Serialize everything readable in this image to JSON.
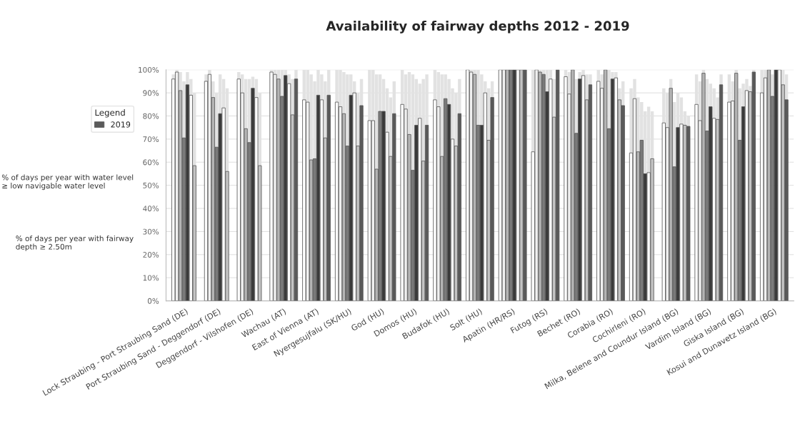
{
  "chart_data": {
    "type": "bar",
    "title": "Availability of fairway depths 2012 - 2019",
    "categories": [
      "Lock Straubing - Port Straubing Sand (DE)",
      "Port Straubing Sand - Deggendorf (DE)",
      "Deggendorf - Vilshofen (DE)",
      "Wachau (AT)",
      "East of Vienna (AT)",
      "Nyergesujfalu (SK/HU)",
      "God (HU)",
      "Domos (HU)",
      "Budafok (HU)",
      "Solt (HU)",
      "Apatin (HR/RS)",
      "Futog (RS)",
      "Bechet (RO)",
      "Corabia (RO)",
      "Cochirleni (RO)",
      "Milka, Belene and Coundur Island (BG)",
      "Vardim Island (BG)",
      "Giska Island (BG)",
      "Kosui and Dunavetz Island (BG)"
    ],
    "ylim": [
      0,
      100
    ],
    "yticks": [
      {
        "value": 0,
        "label": "0%"
      },
      {
        "value": 10,
        "label": "10%"
      },
      {
        "value": 20,
        "label": "20%"
      },
      {
        "value": 30,
        "label": "30%"
      },
      {
        "value": 40,
        "label": "40%"
      },
      {
        "value": 50,
        "label": "50%"
      },
      {
        "value": 60,
        "label": "60%"
      },
      {
        "value": 70,
        "label": "70%"
      },
      {
        "value": 80,
        "label": "80%"
      },
      {
        "value": 90,
        "label": "90%"
      },
      {
        "value": 100,
        "label": "100%"
      }
    ],
    "grid": "y",
    "legend": "left",
    "legend_title": "Legend",
    "annotations": [
      "% of days per year with water level ≥ low navigable water level",
      "% of days per year with fairway depth ≥ 2.50m"
    ],
    "series": [
      {
        "color": "#ffffff",
        "values": [
          96,
          95,
          96,
          99,
          87,
          86,
          78,
          85,
          87,
          100,
          100,
          64.5,
          97,
          95,
          64,
          77,
          85,
          86,
          90
        ],
        "errors": [
          [
            96,
            98
          ],
          [
            95,
            98
          ],
          [
            96,
            99
          ],
          [
            99,
            100
          ],
          [
            87,
            100
          ],
          [
            86,
            100
          ],
          [
            78,
            100
          ],
          [
            85,
            100
          ],
          [
            87,
            100
          ],
          null,
          null,
          [
            64.5,
            100
          ],
          [
            97,
            100
          ],
          [
            95,
            100
          ],
          [
            64,
            92
          ],
          [
            77,
            92
          ],
          [
            85,
            98
          ],
          [
            86,
            98
          ],
          [
            90,
            100
          ]
        ]
      },
      {
        "color": "#f0f0f0",
        "values": [
          99,
          98,
          90,
          98,
          86,
          84,
          78,
          83,
          84,
          99,
          100,
          100,
          89.5,
          92,
          87.5,
          75,
          78,
          86.5,
          96.5
        ],
        "errors": [
          [
            99,
            100
          ],
          [
            98,
            100
          ],
          [
            90,
            98
          ],
          [
            98,
            100
          ],
          [
            86,
            100
          ],
          [
            84,
            100
          ],
          [
            78,
            100
          ],
          [
            83,
            98
          ],
          [
            84,
            99
          ],
          [
            99,
            100
          ],
          null,
          null,
          [
            89.5,
            99
          ],
          [
            92,
            98
          ],
          [
            87.5,
            96
          ],
          [
            75,
            90
          ],
          [
            78,
            95
          ],
          [
            86.5,
            95
          ],
          [
            96.5,
            100
          ]
        ]
      },
      {
        "color": "#b4b4b4",
        "values": [
          91,
          88,
          74.5,
          96,
          61,
          81,
          57,
          72,
          62.5,
          98,
          100,
          99,
          100,
          100,
          64.5,
          92,
          98.5,
          98.5,
          100
        ],
        "errors": [
          [
            91,
            99
          ],
          [
            88,
            95
          ],
          [
            74.5,
            96
          ],
          [
            96,
            100
          ],
          [
            61,
            98
          ],
          [
            81,
            99
          ],
          [
            57,
            98
          ],
          [
            72,
            99
          ],
          [
            62.5,
            98
          ],
          [
            98,
            100
          ],
          null,
          [
            99,
            100
          ],
          null,
          null,
          [
            64.5,
            88
          ],
          [
            92,
            96
          ],
          [
            98.5,
            100
          ],
          [
            98.5,
            100
          ],
          null
        ]
      },
      {
        "color": "#7a7a7a",
        "values": [
          70.5,
          66.5,
          68.5,
          88.5,
          61.5,
          67,
          82,
          56.5,
          87.5,
          76,
          100,
          98,
          72.5,
          74.5,
          69.5,
          58,
          73.5,
          69.5,
          88.5
        ],
        "errors": [
          [
            70.5,
            95
          ],
          [
            66.5,
            90
          ],
          [
            68.5,
            96
          ],
          [
            88.5,
            100
          ],
          [
            61.5,
            95
          ],
          [
            67,
            98
          ],
          [
            82,
            98
          ],
          [
            56.5,
            98
          ],
          [
            87.5,
            98
          ],
          [
            76,
            100
          ],
          null,
          [
            98,
            100
          ],
          [
            72.5,
            96
          ],
          [
            74.5,
            100
          ],
          [
            69.5,
            86
          ],
          [
            58,
            86
          ],
          [
            73.5,
            96
          ],
          [
            69.5,
            92
          ],
          [
            88.5,
            98
          ]
        ]
      },
      {
        "color": "#3a3a3a",
        "values": [
          93.5,
          81,
          92,
          97.5,
          89,
          89,
          82,
          76,
          85,
          76,
          100,
          90.5,
          96,
          96,
          55,
          75,
          84,
          84,
          100
        ],
        "errors": [
          [
            93.5,
            99
          ],
          [
            81,
            98
          ],
          [
            92,
            97
          ],
          [
            97.5,
            100
          ],
          [
            89,
            100
          ],
          [
            89,
            98
          ],
          [
            82,
            96
          ],
          [
            76,
            96
          ],
          [
            85,
            96
          ],
          [
            76,
            98
          ],
          null,
          [
            90.5,
            100
          ],
          [
            96,
            99
          ],
          [
            96,
            99
          ],
          [
            55,
            82
          ],
          [
            75,
            90
          ],
          [
            84,
            94
          ],
          [
            84,
            94
          ],
          null
        ]
      },
      {
        "color": "#fafafa",
        "values": [
          89,
          83.5,
          88,
          94,
          87,
          90,
          73,
          79,
          70,
          90,
          100,
          96,
          97.5,
          96.5,
          55.5,
          76.5,
          79,
          91,
          100
        ],
        "errors": [
          [
            89,
            96
          ],
          [
            83.5,
            96
          ],
          [
            88,
            96
          ],
          [
            94,
            98
          ],
          [
            87,
            98
          ],
          [
            90,
            95
          ],
          [
            73,
            92
          ],
          [
            79,
            94
          ],
          [
            70,
            92
          ],
          [
            90,
            95
          ],
          null,
          [
            96,
            100
          ],
          [
            97.5,
            100
          ],
          [
            96.5,
            99
          ],
          [
            55.5,
            84
          ],
          [
            76.5,
            88
          ],
          [
            79,
            92
          ],
          [
            91,
            96
          ],
          null
        ]
      },
      {
        "color": "#c4c4c4",
        "values": [
          58.5,
          56,
          58.5,
          80.5,
          70.5,
          67,
          62.5,
          60.5,
          67,
          69.5,
          100,
          79.5,
          87,
          87,
          61.5,
          76,
          78.5,
          90.5,
          93.5
        ],
        "errors": [
          [
            58.5,
            90
          ],
          [
            56,
            92
          ],
          [
            58.5,
            90
          ],
          [
            80.5,
            96
          ],
          [
            70.5,
            95
          ],
          [
            67,
            90
          ],
          [
            62.5,
            88
          ],
          [
            60.5,
            96
          ],
          [
            67,
            90
          ],
          [
            69.5,
            92
          ],
          null,
          [
            79.5,
            96
          ],
          [
            87,
            98
          ],
          [
            87,
            92
          ],
          [
            61.5,
            82
          ],
          [
            76,
            82
          ],
          [
            78.5,
            88
          ],
          [
            90.5,
            93
          ],
          [
            93.5,
            100
          ]
        ]
      },
      {
        "name": "2019",
        "color": "#5a5a5a",
        "values": [
          null,
          null,
          null,
          96,
          89,
          84.5,
          81,
          76,
          81,
          88,
          100,
          100,
          93.5,
          84.5,
          null,
          75.5,
          93.5,
          99,
          87
        ],
        "errors": [
          null,
          null,
          null,
          [
            96,
            100
          ],
          [
            89,
            100
          ],
          [
            84.5,
            96
          ],
          [
            81,
            95
          ],
          [
            76,
            98
          ],
          [
            81,
            96
          ],
          [
            88,
            95
          ],
          null,
          null,
          [
            93.5,
            98
          ],
          [
            84.5,
            95
          ],
          null,
          [
            75.5,
            80
          ],
          [
            93.5,
            98
          ],
          [
            99,
            100
          ],
          [
            87,
            98
          ]
        ]
      }
    ]
  }
}
